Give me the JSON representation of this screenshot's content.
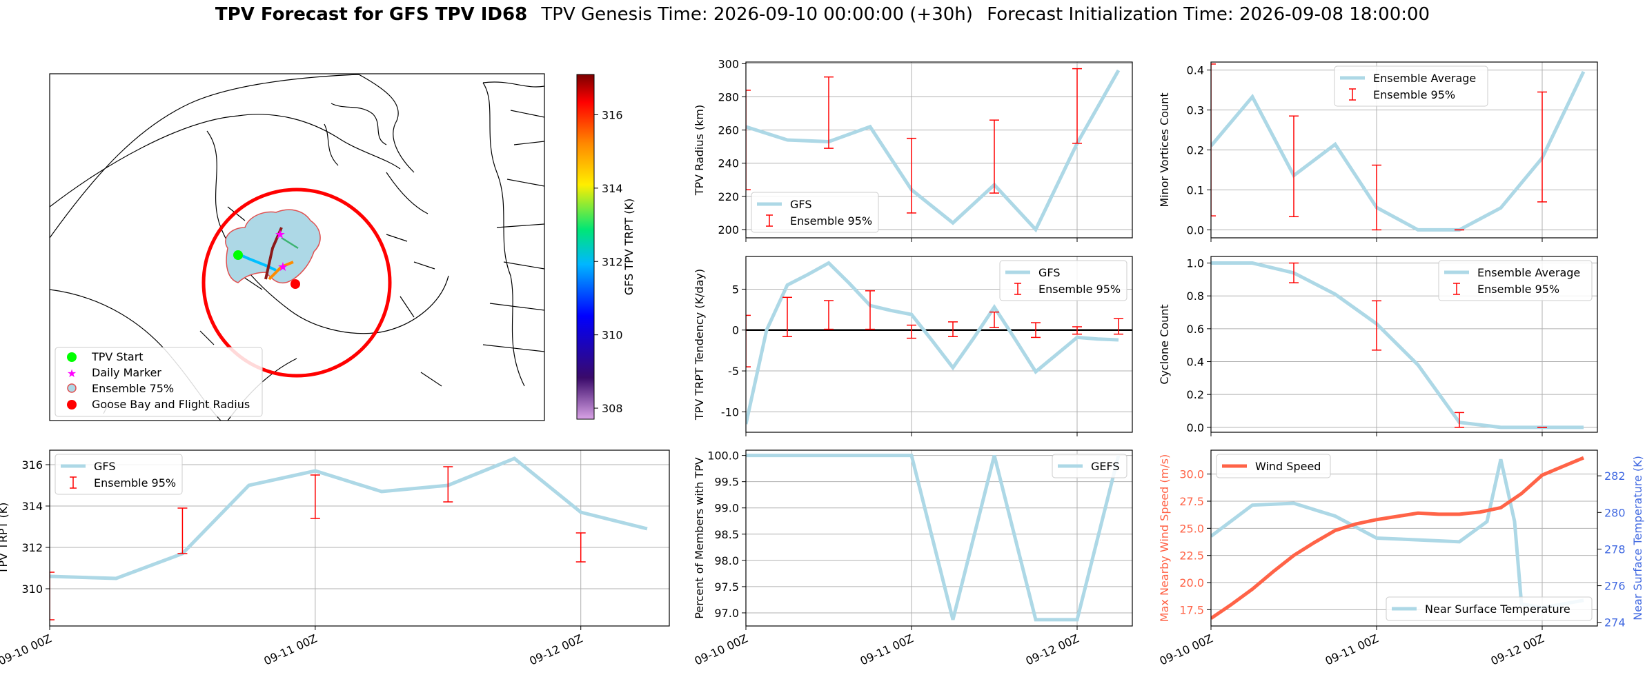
{
  "figure": {
    "title_bold": "TPV Forecast for GFS TPV ID68",
    "genesis_text": "TPV Genesis Time: 2026-09-10 00:00:00 (+30h)",
    "init_text": "Forecast Initialization Time: 2026-09-08 18:00:00",
    "x_tick_labels": [
      "09-10 00Z",
      "09-11 00Z",
      "09-12 00Z"
    ]
  },
  "colors": {
    "series_line": "#add8e6",
    "errorbar": "#ff0000",
    "wind": "#ff6347",
    "temp_axis": "#4169e1",
    "grid": "#b0b0b0",
    "zero_line": "#000000"
  },
  "map": {
    "colorbar_label": "GFS TPV TRPT (K)",
    "colorbar_ticks": [
      "308",
      "310",
      "312",
      "314",
      "316"
    ],
    "colorbar_range": [
      307.7,
      317.1
    ],
    "legend": [
      {
        "label": "TPV Start",
        "icon": "green-dot-icon"
      },
      {
        "label": "Daily Marker",
        "icon": "magenta-star-icon"
      },
      {
        "label": "Ensemble 75%",
        "icon": "ensemble-circle-icon"
      },
      {
        "label": "Goose Bay and Flight Radius",
        "icon": "red-dot-icon"
      }
    ]
  },
  "chart_data": [
    {
      "id": "radius",
      "type": "line",
      "ylabel": "TPV Radius (km)",
      "ylim": [
        195,
        301
      ],
      "yticks": [
        "200",
        "220",
        "240",
        "260",
        "280",
        "300"
      ],
      "legend": [
        "GFS",
        "Ensemble 95%"
      ],
      "legend_pos": "lower-left",
      "series": [
        {
          "name": "GFS",
          "x": [
            0,
            6,
            12,
            18,
            24,
            30,
            36,
            42,
            48,
            54
          ],
          "values": [
            262,
            254,
            253,
            262,
            224,
            204,
            227,
            200,
            252,
            296
          ]
        }
      ],
      "errorbars": [
        {
          "x": 0,
          "lo": 224,
          "hi": 284
        },
        {
          "x": 12,
          "lo": 249,
          "hi": 292
        },
        {
          "x": 24,
          "lo": 210,
          "hi": 255
        },
        {
          "x": 36,
          "lo": 222,
          "hi": 266
        },
        {
          "x": 48,
          "lo": 252,
          "hi": 297
        }
      ]
    },
    {
      "id": "minor",
      "type": "line",
      "ylabel": "Minor Vortices Count",
      "ylim": [
        -0.02,
        0.42
      ],
      "yticks": [
        "0.0",
        "0.1",
        "0.2",
        "0.3",
        "0.4"
      ],
      "legend": [
        "Ensemble Average",
        "Ensemble 95%"
      ],
      "legend_pos": "top-center",
      "series": [
        {
          "name": "Ensemble Average",
          "x": [
            0,
            6,
            12,
            18,
            24,
            30,
            36,
            42,
            48,
            54
          ],
          "values": [
            0.21,
            0.333,
            0.136,
            0.214,
            0.056,
            0.0,
            0.0,
            0.055,
            0.18,
            0.396
          ]
        }
      ],
      "errorbars": [
        {
          "x": 0,
          "lo": 0.035,
          "hi": 0.415
        },
        {
          "x": 12,
          "lo": 0.033,
          "hi": 0.285
        },
        {
          "x": 24,
          "lo": 0.0,
          "hi": 0.162
        },
        {
          "x": 36,
          "lo": 0.0,
          "hi": 0.0
        },
        {
          "x": 48,
          "lo": 0.07,
          "hi": 0.345
        }
      ]
    },
    {
      "id": "tendency",
      "type": "line",
      "ylabel": "TPV TRPT Tendency (K/day)",
      "ylim": [
        -12.5,
        9
      ],
      "yticks": [
        "-10",
        "-5",
        "0",
        "5"
      ],
      "zero_line": true,
      "legend": [
        "GFS",
        "Ensemble 95%"
      ],
      "legend_pos": "top-right",
      "series": [
        {
          "name": "GFS",
          "x": [
            0,
            3,
            6,
            9,
            12,
            15,
            18,
            21,
            24,
            27,
            30,
            33,
            36,
            39,
            42,
            45,
            48,
            51,
            54
          ],
          "values": [
            -11.5,
            0,
            5.5,
            6.8,
            8.2,
            5.7,
            3.0,
            2.4,
            1.9,
            -1.3,
            -4.6,
            -1.0,
            2.8,
            -1.1,
            -5.1,
            -3.0,
            -0.9,
            -1.1,
            -1.2
          ]
        }
      ],
      "errorbars": [
        {
          "x": 0,
          "lo": -4.5,
          "hi": 1.8
        },
        {
          "x": 6,
          "lo": -0.8,
          "hi": 4.0
        },
        {
          "x": 12,
          "lo": 0.1,
          "hi": 3.6
        },
        {
          "x": 18,
          "lo": 0.1,
          "hi": 4.8
        },
        {
          "x": 24,
          "lo": -1.0,
          "hi": 0.6
        },
        {
          "x": 30,
          "lo": -0.8,
          "hi": 1.0
        },
        {
          "x": 36,
          "lo": 0.3,
          "hi": 2.2
        },
        {
          "x": 42,
          "lo": -0.9,
          "hi": 0.9
        },
        {
          "x": 48,
          "lo": -0.5,
          "hi": 0.4
        },
        {
          "x": 54,
          "lo": -0.5,
          "hi": 1.4
        }
      ]
    },
    {
      "id": "cyclone",
      "type": "line",
      "ylabel": "Cyclone Count",
      "ylim": [
        -0.03,
        1.04
      ],
      "yticks": [
        "0.0",
        "0.2",
        "0.4",
        "0.6",
        "0.8",
        "1.0"
      ],
      "legend": [
        "Ensemble Average",
        "Ensemble 95%"
      ],
      "legend_pos": "top-right",
      "series": [
        {
          "name": "Ensemble Average",
          "x": [
            0,
            6,
            12,
            18,
            24,
            30,
            36,
            42,
            48,
            54
          ],
          "values": [
            1.0,
            1.0,
            0.94,
            0.81,
            0.63,
            0.38,
            0.03,
            0.0,
            0.0,
            0.0
          ]
        }
      ],
      "errorbars": [
        {
          "x": 12,
          "lo": 0.88,
          "hi": 1.0
        },
        {
          "x": 24,
          "lo": 0.47,
          "hi": 0.77
        },
        {
          "x": 36,
          "lo": 0.0,
          "hi": 0.09
        },
        {
          "x": 48,
          "lo": 0.0,
          "hi": 0.0
        }
      ]
    },
    {
      "id": "trpt",
      "type": "line",
      "ylabel": "TPV TRPT (K)",
      "ylim": [
        308.2,
        316.7
      ],
      "yticks": [
        "310",
        "312",
        "314",
        "316"
      ],
      "legend": [
        "GFS",
        "Ensemble 95%"
      ],
      "legend_pos": "top-left",
      "series": [
        {
          "name": "GFS",
          "x": [
            0,
            6,
            12,
            18,
            24,
            30,
            36,
            42,
            48,
            54
          ],
          "values": [
            310.6,
            310.5,
            311.7,
            315.0,
            315.7,
            314.7,
            315.0,
            316.3,
            313.7,
            312.9
          ]
        }
      ],
      "errorbars": [
        {
          "x": 0,
          "lo": 308.5,
          "hi": 310.8
        },
        {
          "x": 12,
          "lo": 311.7,
          "hi": 313.9
        },
        {
          "x": 24,
          "lo": 313.4,
          "hi": 315.5
        },
        {
          "x": 36,
          "lo": 314.2,
          "hi": 315.9
        },
        {
          "x": 48,
          "lo": 311.3,
          "hi": 312.7
        }
      ]
    },
    {
      "id": "percent",
      "type": "line",
      "ylabel": "Percent of Members with TPV",
      "ylim": [
        96.75,
        100.1
      ],
      "yticks": [
        "97.0",
        "97.5",
        "98.0",
        "98.5",
        "99.0",
        "99.5",
        "100.0"
      ],
      "legend": [
        "GEFS"
      ],
      "legend_pos": "top-right",
      "series": [
        {
          "name": "GEFS",
          "x": [
            0,
            6,
            12,
            18,
            24,
            30,
            36,
            42,
            48,
            54
          ],
          "values": [
            100,
            100,
            100,
            100,
            100,
            96.87,
            100,
            96.87,
            96.87,
            100
          ]
        }
      ],
      "errorbars": []
    },
    {
      "id": "wind_temp",
      "type": "line",
      "ylabel": "Max Nearby Wind Speed (m/s)",
      "ylim": [
        16.0,
        32.2
      ],
      "yticks": [
        "17.5",
        "20.0",
        "22.5",
        "25.0",
        "27.5",
        "30.0"
      ],
      "y2label": "Near Surface Temperature (K)",
      "y2lim": [
        273.8,
        283.4
      ],
      "y2ticks": [
        "274",
        "276",
        "278",
        "280",
        "282"
      ],
      "legend": [
        "Wind Speed"
      ],
      "legend2": [
        "Near Surface Temperature"
      ],
      "series": [
        {
          "name": "Wind Speed",
          "x": [
            0,
            3,
            6,
            9,
            12,
            15,
            18,
            21,
            24,
            27,
            30,
            33,
            36,
            39,
            42,
            45,
            48,
            51,
            54
          ],
          "values": [
            16.7,
            18.0,
            19.4,
            21.0,
            22.5,
            23.7,
            24.8,
            25.4,
            25.8,
            26.1,
            26.4,
            26.3,
            26.3,
            26.5,
            26.9,
            28.2,
            29.9,
            30.7,
            31.5
          ]
        },
        {
          "name": "Near Surface Temperature",
          "x": [
            0,
            6,
            12,
            18,
            24,
            30,
            36,
            40,
            42,
            44,
            45,
            48,
            54
          ],
          "values": [
            278.7,
            280.4,
            280.5,
            279.8,
            278.6,
            278.5,
            278.4,
            279.5,
            282.9,
            279.5,
            275.0,
            274.8,
            275.2
          ]
        }
      ],
      "errorbars": []
    }
  ]
}
